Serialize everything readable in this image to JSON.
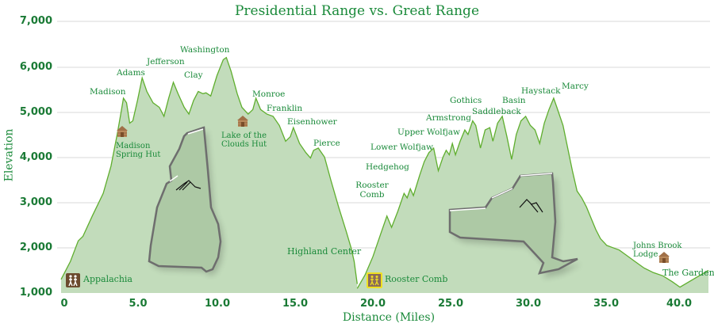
{
  "chart_data": {
    "type": "area",
    "title": "Presidential Range vs. Great Range",
    "xlabel": "Distance (Miles)",
    "ylabel": "Elevation",
    "xlim": [
      0,
      42
    ],
    "ylim": [
      1000,
      7000
    ],
    "grid": true,
    "x_ticks": [
      "0",
      "5.0",
      "10.0",
      "15.0",
      "20.0",
      "25.0",
      "30.0",
      "35.0",
      "40.0"
    ],
    "y_ticks": [
      "1,000",
      "2,000",
      "3,000",
      "4,000",
      "5,000",
      "6,000",
      "7,000"
    ],
    "colors": {
      "fill": "#c2dcbb",
      "line": "#5fae2e",
      "text": "#1a8a3a",
      "grid": "#e8e8e8"
    },
    "series": [
      {
        "name": "Presidential Range",
        "points": [
          [
            0,
            1300
          ],
          [
            0.6,
            1700
          ],
          [
            1.1,
            2150
          ],
          [
            1.4,
            2250
          ],
          [
            2.0,
            2700
          ],
          [
            2.7,
            3200
          ],
          [
            3.2,
            3800
          ],
          [
            3.6,
            4500
          ],
          [
            3.85,
            5000
          ],
          [
            4.0,
            5300
          ],
          [
            4.2,
            5200
          ],
          [
            4.4,
            4750
          ],
          [
            4.6,
            4800
          ],
          [
            4.9,
            5250
          ],
          [
            5.2,
            5750
          ],
          [
            5.5,
            5450
          ],
          [
            5.9,
            5200
          ],
          [
            6.3,
            5100
          ],
          [
            6.6,
            4900
          ],
          [
            6.9,
            5300
          ],
          [
            7.2,
            5650
          ],
          [
            7.5,
            5400
          ],
          [
            7.9,
            5100
          ],
          [
            8.2,
            4950
          ],
          [
            8.5,
            5250
          ],
          [
            8.8,
            5450
          ],
          [
            9.1,
            5400
          ],
          [
            9.3,
            5420
          ],
          [
            9.6,
            5350
          ],
          [
            10.0,
            5800
          ],
          [
            10.4,
            6150
          ],
          [
            10.6,
            6200
          ],
          [
            10.9,
            5900
          ],
          [
            11.3,
            5400
          ],
          [
            11.6,
            5100
          ],
          [
            12.0,
            4950
          ],
          [
            12.3,
            5050
          ],
          [
            12.5,
            5300
          ],
          [
            12.8,
            5050
          ],
          [
            13.2,
            4950
          ],
          [
            13.6,
            4900
          ],
          [
            14.0,
            4700
          ],
          [
            14.4,
            4350
          ],
          [
            14.7,
            4450
          ],
          [
            14.9,
            4650
          ],
          [
            15.3,
            4300
          ],
          [
            15.7,
            4100
          ],
          [
            16.0,
            3980
          ],
          [
            16.2,
            4150
          ],
          [
            16.5,
            4200
          ],
          [
            16.9,
            4000
          ],
          [
            17.3,
            3500
          ],
          [
            17.8,
            2900
          ],
          [
            18.3,
            2350
          ],
          [
            18.6,
            2000
          ],
          [
            18.8,
            1700
          ],
          [
            19.0,
            1200
          ]
        ],
        "peaks": [
          {
            "name": "Madison",
            "x": 4.0,
            "elev": 5367
          },
          {
            "name": "Adams",
            "x": 5.2,
            "elev": 5799
          },
          {
            "name": "Jefferson",
            "x": 7.2,
            "elev": 5716
          },
          {
            "name": "Clay",
            "x": 8.8,
            "elev": 5533
          },
          {
            "name": "Washington",
            "x": 10.6,
            "elev": 6288
          },
          {
            "name": "Monroe",
            "x": 12.5,
            "elev": 5372
          },
          {
            "name": "Franklin",
            "x": 13.6,
            "elev": 5001
          },
          {
            "name": "Eisenhower",
            "x": 14.9,
            "elev": 4760
          },
          {
            "name": "Pierce",
            "x": 16.5,
            "elev": 4312
          }
        ]
      },
      {
        "name": "Great Range",
        "points": [
          [
            19.0,
            1100
          ],
          [
            19.5,
            1400
          ],
          [
            20.0,
            1800
          ],
          [
            20.5,
            2300
          ],
          [
            20.9,
            2700
          ],
          [
            21.2,
            2450
          ],
          [
            21.6,
            2800
          ],
          [
            22.0,
            3200
          ],
          [
            22.2,
            3100
          ],
          [
            22.4,
            3300
          ],
          [
            22.6,
            3150
          ],
          [
            23.0,
            3600
          ],
          [
            23.3,
            3900
          ],
          [
            23.6,
            4100
          ],
          [
            23.9,
            4200
          ],
          [
            24.2,
            3700
          ],
          [
            24.5,
            4000
          ],
          [
            24.7,
            4150
          ],
          [
            24.9,
            4050
          ],
          [
            25.1,
            4300
          ],
          [
            25.3,
            4050
          ],
          [
            25.6,
            4350
          ],
          [
            25.9,
            4600
          ],
          [
            26.1,
            4500
          ],
          [
            26.4,
            4800
          ],
          [
            26.6,
            4700
          ],
          [
            26.9,
            4200
          ],
          [
            27.2,
            4600
          ],
          [
            27.5,
            4650
          ],
          [
            27.7,
            4350
          ],
          [
            28.0,
            4750
          ],
          [
            28.3,
            4900
          ],
          [
            28.6,
            4450
          ],
          [
            28.9,
            3950
          ],
          [
            29.2,
            4500
          ],
          [
            29.5,
            4800
          ],
          [
            29.8,
            4900
          ],
          [
            30.1,
            4700
          ],
          [
            30.4,
            4600
          ],
          [
            30.7,
            4300
          ],
          [
            31.0,
            4750
          ],
          [
            31.3,
            5050
          ],
          [
            31.6,
            5300
          ],
          [
            31.8,
            5100
          ],
          [
            32.2,
            4700
          ],
          [
            32.5,
            4200
          ],
          [
            32.8,
            3700
          ],
          [
            33.1,
            3250
          ],
          [
            33.4,
            3100
          ],
          [
            33.7,
            2900
          ],
          [
            34.0,
            2650
          ],
          [
            34.3,
            2400
          ],
          [
            34.6,
            2200
          ],
          [
            35.0,
            2050
          ],
          [
            35.4,
            2000
          ],
          [
            35.8,
            1950
          ],
          [
            36.2,
            1850
          ],
          [
            36.8,
            1700
          ],
          [
            37.4,
            1550
          ],
          [
            38.0,
            1450
          ],
          [
            38.6,
            1380
          ],
          [
            39.2,
            1250
          ],
          [
            39.7,
            1130
          ]
        ],
        "peaks": [
          {
            "name": "Rooster Comb",
            "x": 20.9,
            "elev": 2788
          },
          {
            "name": "Hedgehog",
            "x": 22.4,
            "elev": 3389
          },
          {
            "name": "Lower Wolfjaw",
            "x": 23.9,
            "elev": 4175
          },
          {
            "name": "Upper Wolfjaw",
            "x": 25.1,
            "elev": 4185
          },
          {
            "name": "Armstrong",
            "x": 26.4,
            "elev": 4400
          },
          {
            "name": "Gothics",
            "x": 26.6,
            "elev": 4736
          },
          {
            "name": "Saddleback",
            "x": 28.3,
            "elev": 4515
          },
          {
            "name": "Basin",
            "x": 29.8,
            "elev": 4827
          },
          {
            "name": "Haystack",
            "x": 31.3,
            "elev": 4960
          },
          {
            "name": "Marcy",
            "x": 33.4,
            "elev": 5344
          }
        ]
      }
    ],
    "annotations": [
      {
        "label": "Madison Spring Hut",
        "type": "hut"
      },
      {
        "label": "Lake of the Clouds Hut",
        "type": "hut"
      },
      {
        "label": "Johns Brook Lodge",
        "type": "hut"
      },
      {
        "label": "Appalachia",
        "type": "trailhead"
      },
      {
        "label": "Highland Center",
        "type": "trailhead"
      },
      {
        "label": "Rooster Comb",
        "type": "trailhead"
      },
      {
        "label": "The Garden",
        "type": "trailhead"
      }
    ]
  },
  "title": "Presidential Range vs. Great Range",
  "axes": {
    "xlabel": "Distance (Miles)",
    "ylabel": "Elevation",
    "y_ticks": [
      "7,000",
      "6,000",
      "5,000",
      "4,000",
      "3,000",
      "2,000",
      "1,000"
    ],
    "x_ticks": [
      "0",
      "5.0",
      "10.0",
      "15.0",
      "20.0",
      "25.0",
      "30.0",
      "35.0",
      "40.0"
    ]
  },
  "peak_labels": {
    "madison": "Madison",
    "adams": "Adams",
    "jefferson": "Jefferson",
    "clay": "Clay",
    "washington": "Washington",
    "monroe": "Monroe",
    "franklin": "Franklin",
    "eisenhower": "Eisenhower",
    "pierce": "Pierce",
    "rooster_comb_1": "Rooster",
    "rooster_comb_2": "Comb",
    "hedgehog": "Hedgehog",
    "lower_wolfjaw": "Lower Wolfjaw",
    "upper_wolfjaw": "Upper Wolfjaw",
    "armstrong": "Armstrong",
    "gothics": "Gothics",
    "saddleback": "Saddleback",
    "basin": "Basin",
    "haystack": "Haystack",
    "marcy": "Marcy"
  },
  "huts": {
    "madison_1": "Madison",
    "madison_2": "Spring Hut",
    "lakes_1": "Lake of the",
    "lakes_2": "Clouds Hut",
    "jbl_1": "Johns Brook",
    "jbl_2": "Lodge"
  },
  "trailheads": {
    "appalachia": "Appalachia",
    "highland": "Highland Center",
    "rooster": "Rooster Comb",
    "garden": "The Garden"
  }
}
